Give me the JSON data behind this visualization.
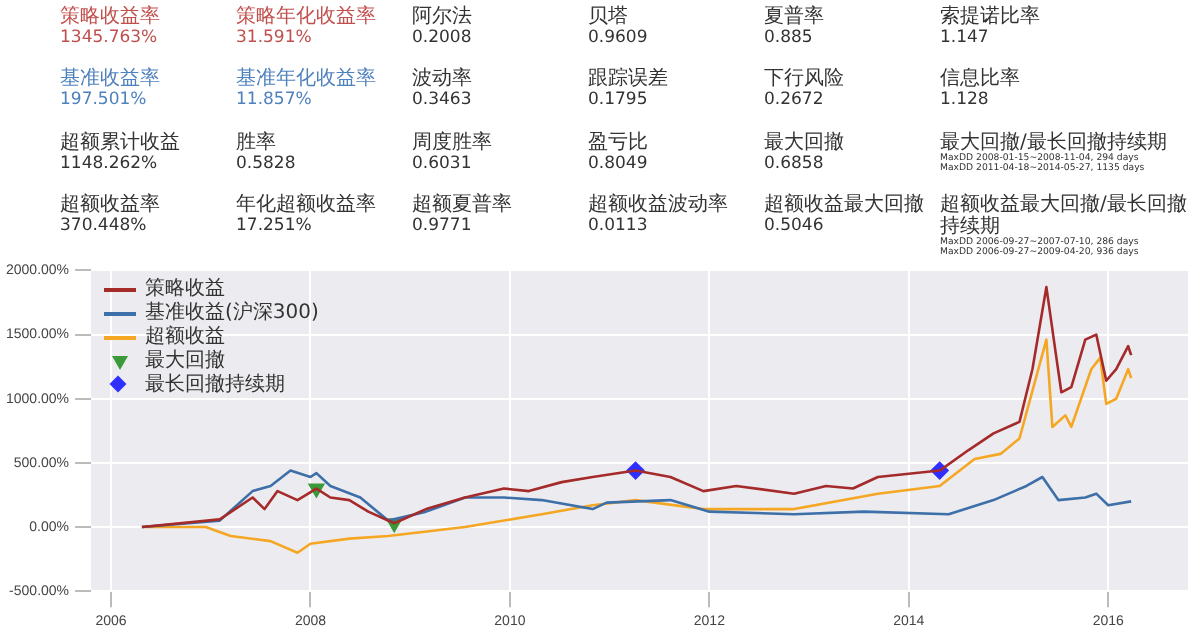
{
  "chart_data": [
    {
      "type": "other",
      "annotations": [
        "策略收益率",
        "1345.763%",
        "策略年化收益率",
        "31.591%",
        "阿尔法",
        "0.2008",
        "贝塔",
        "0.9609",
        "夏普率",
        "0.885",
        "索提诺比率",
        "1.147",
        "基准收益率",
        "197.501%",
        "基准年化收益率",
        "11.857%",
        "波动率",
        "0.3463",
        "跟踪误差",
        "0.1795",
        "下行风险",
        "0.2672",
        "信息比率",
        "1.128",
        "超额累计收益",
        "1148.262%",
        "胜率",
        "0.5828",
        "周度胜率",
        "0.6031",
        "盈亏比",
        "0.8049",
        "最大回撤",
        "0.6858",
        "最大回撤/最长回撤持续期",
        "MaxDD 2008-01-15~2008-11-04, 294 days\nMaxDD 2011-04-18~2014-05-27, 1135 days",
        "超额收益率",
        "370.448%",
        "年化超额收益率",
        "17.251%",
        "超额夏普率",
        "0.9771",
        "超额收益波动率",
        "0.0113",
        "超额收益最大回撤",
        "0.5046",
        "超额收益最大回撤/最长回撤持续期",
        "MaxDD 2006-09-27~2007-07-10, 286 days\nMaxDD 2006-09-27~2009-04-20, 936 days"
      ],
      "colors": [
        "#c0504d",
        "#c0504d",
        "#c0504d",
        "#c0504d",
        "#333333",
        "#333333",
        "#333333",
        "#333333",
        "#333333",
        "#333333",
        "#333333",
        "#333333",
        "#4f81bd",
        "#4f81bd",
        "#4f81bd",
        "#4f81bd",
        "#333333",
        "#333333",
        "#333333",
        "#333333",
        "#333333",
        "#333333",
        "#333333",
        "#333333",
        "#333333",
        "#333333",
        "#333333",
        "#333333",
        "#333333",
        "#333333",
        "#333333",
        "#333333",
        "#333333",
        "#333333",
        "#333333",
        "#333333",
        "#333333",
        "#333333",
        "#333333",
        "#333333",
        "#333333",
        "#333333",
        "#333333",
        "#333333",
        "#333333",
        "#333333",
        "#333333",
        "#333333"
      ]
    },
    {
      "type": "line",
      "xlim": [
        2005.8,
        2016.8
      ],
      "xticks": [
        2006,
        2008,
        2010,
        2012,
        2014,
        2016
      ],
      "ylim": [
        -500,
        2000
      ],
      "yticks": [
        {
          "value": -500,
          "label": "-500.00%"
        },
        {
          "value": 0,
          "label": "0.00%"
        },
        {
          "value": 500,
          "label": "500.00%"
        },
        {
          "value": 1000,
          "label": "1000.00%"
        },
        {
          "value": 1500,
          "label": "1500.00%"
        },
        {
          "value": 2000,
          "label": "2000.00%"
        }
      ],
      "grid": true,
      "legend": "top left",
      "series": [
        {
          "name": "策略收益",
          "type": "line",
          "marker": "none",
          "color": "#a52a2a",
          "x": [
            2006.31,
            2007.09,
            2007.42,
            2007.54,
            2007.67,
            2007.87,
            2008.06,
            2008.2,
            2008.39,
            2008.58,
            2008.84,
            2009.16,
            2009.55,
            2009.94,
            2010.19,
            2010.52,
            2010.83,
            2011.26,
            2011.61,
            2011.94,
            2012.27,
            2012.85,
            2013.17,
            2013.44,
            2013.69,
            2014.31,
            2014.6,
            2014.85,
            2015.11,
            2015.24,
            2015.38,
            2015.48,
            2015.53,
            2015.63,
            2015.77,
            2015.88,
            2015.98,
            2016.08,
            2016.2,
            2016.23
          ],
          "values": [
            0,
            60,
            230,
            140,
            280,
            210,
            300,
            230,
            210,
            120,
            30,
            140,
            230,
            300,
            280,
            350,
            390,
            440,
            390,
            280,
            320,
            260,
            320,
            300,
            390,
            440,
            600,
            730,
            820,
            1230,
            1870,
            1320,
            1050,
            1090,
            1460,
            1500,
            1140,
            1230,
            1410,
            1340
          ]
        },
        {
          "name": "基准收益(沪深300)",
          "type": "line",
          "marker": "none",
          "color": "#3d6fa8",
          "x": [
            2006.31,
            2007.09,
            2007.42,
            2007.6,
            2007.8,
            2008.0,
            2008.06,
            2008.2,
            2008.5,
            2008.78,
            2009.16,
            2009.55,
            2009.94,
            2010.32,
            2010.83,
            2010.97,
            2011.61,
            2012.0,
            2012.85,
            2013.55,
            2014.4,
            2014.85,
            2015.18,
            2015.34,
            2015.5,
            2015.77,
            2015.88,
            2016.0,
            2016.23
          ],
          "values": [
            0,
            50,
            280,
            320,
            440,
            390,
            420,
            320,
            230,
            50,
            120,
            230,
            230,
            210,
            140,
            190,
            210,
            120,
            100,
            120,
            100,
            210,
            320,
            390,
            210,
            230,
            260,
            170,
            200
          ]
        },
        {
          "name": "超额收益",
          "type": "line",
          "marker": "none",
          "color": "#f5a623",
          "x": [
            2006.31,
            2006.95,
            2007.2,
            2007.6,
            2007.87,
            2008.0,
            2008.39,
            2008.78,
            2009.55,
            2010.32,
            2010.83,
            2011.26,
            2011.94,
            2012.85,
            2013.69,
            2014.31,
            2014.66,
            2014.92,
            2015.11,
            2015.38,
            2015.44,
            2015.57,
            2015.63,
            2015.83,
            2015.92,
            2015.98,
            2016.08,
            2016.2,
            2016.23
          ],
          "values": [
            0,
            0,
            -70,
            -110,
            -200,
            -130,
            -90,
            -70,
            0,
            100,
            170,
            210,
            140,
            140,
            260,
            320,
            530,
            570,
            690,
            1460,
            780,
            870,
            780,
            1230,
            1320,
            960,
            1000,
            1230,
            1160
          ]
        },
        {
          "name": "最大回撤",
          "type": "scatter",
          "marker": "triangle",
          "color": "#3a9a3a",
          "x": [
            2008.06,
            2008.84
          ],
          "values": [
            300,
            30
          ]
        },
        {
          "name": "最长回撤持续期",
          "type": "scatter",
          "marker": "diamond",
          "color": "#2f2fff",
          "x": [
            2011.26,
            2014.31
          ],
          "values": [
            440,
            440
          ]
        }
      ]
    }
  ]
}
